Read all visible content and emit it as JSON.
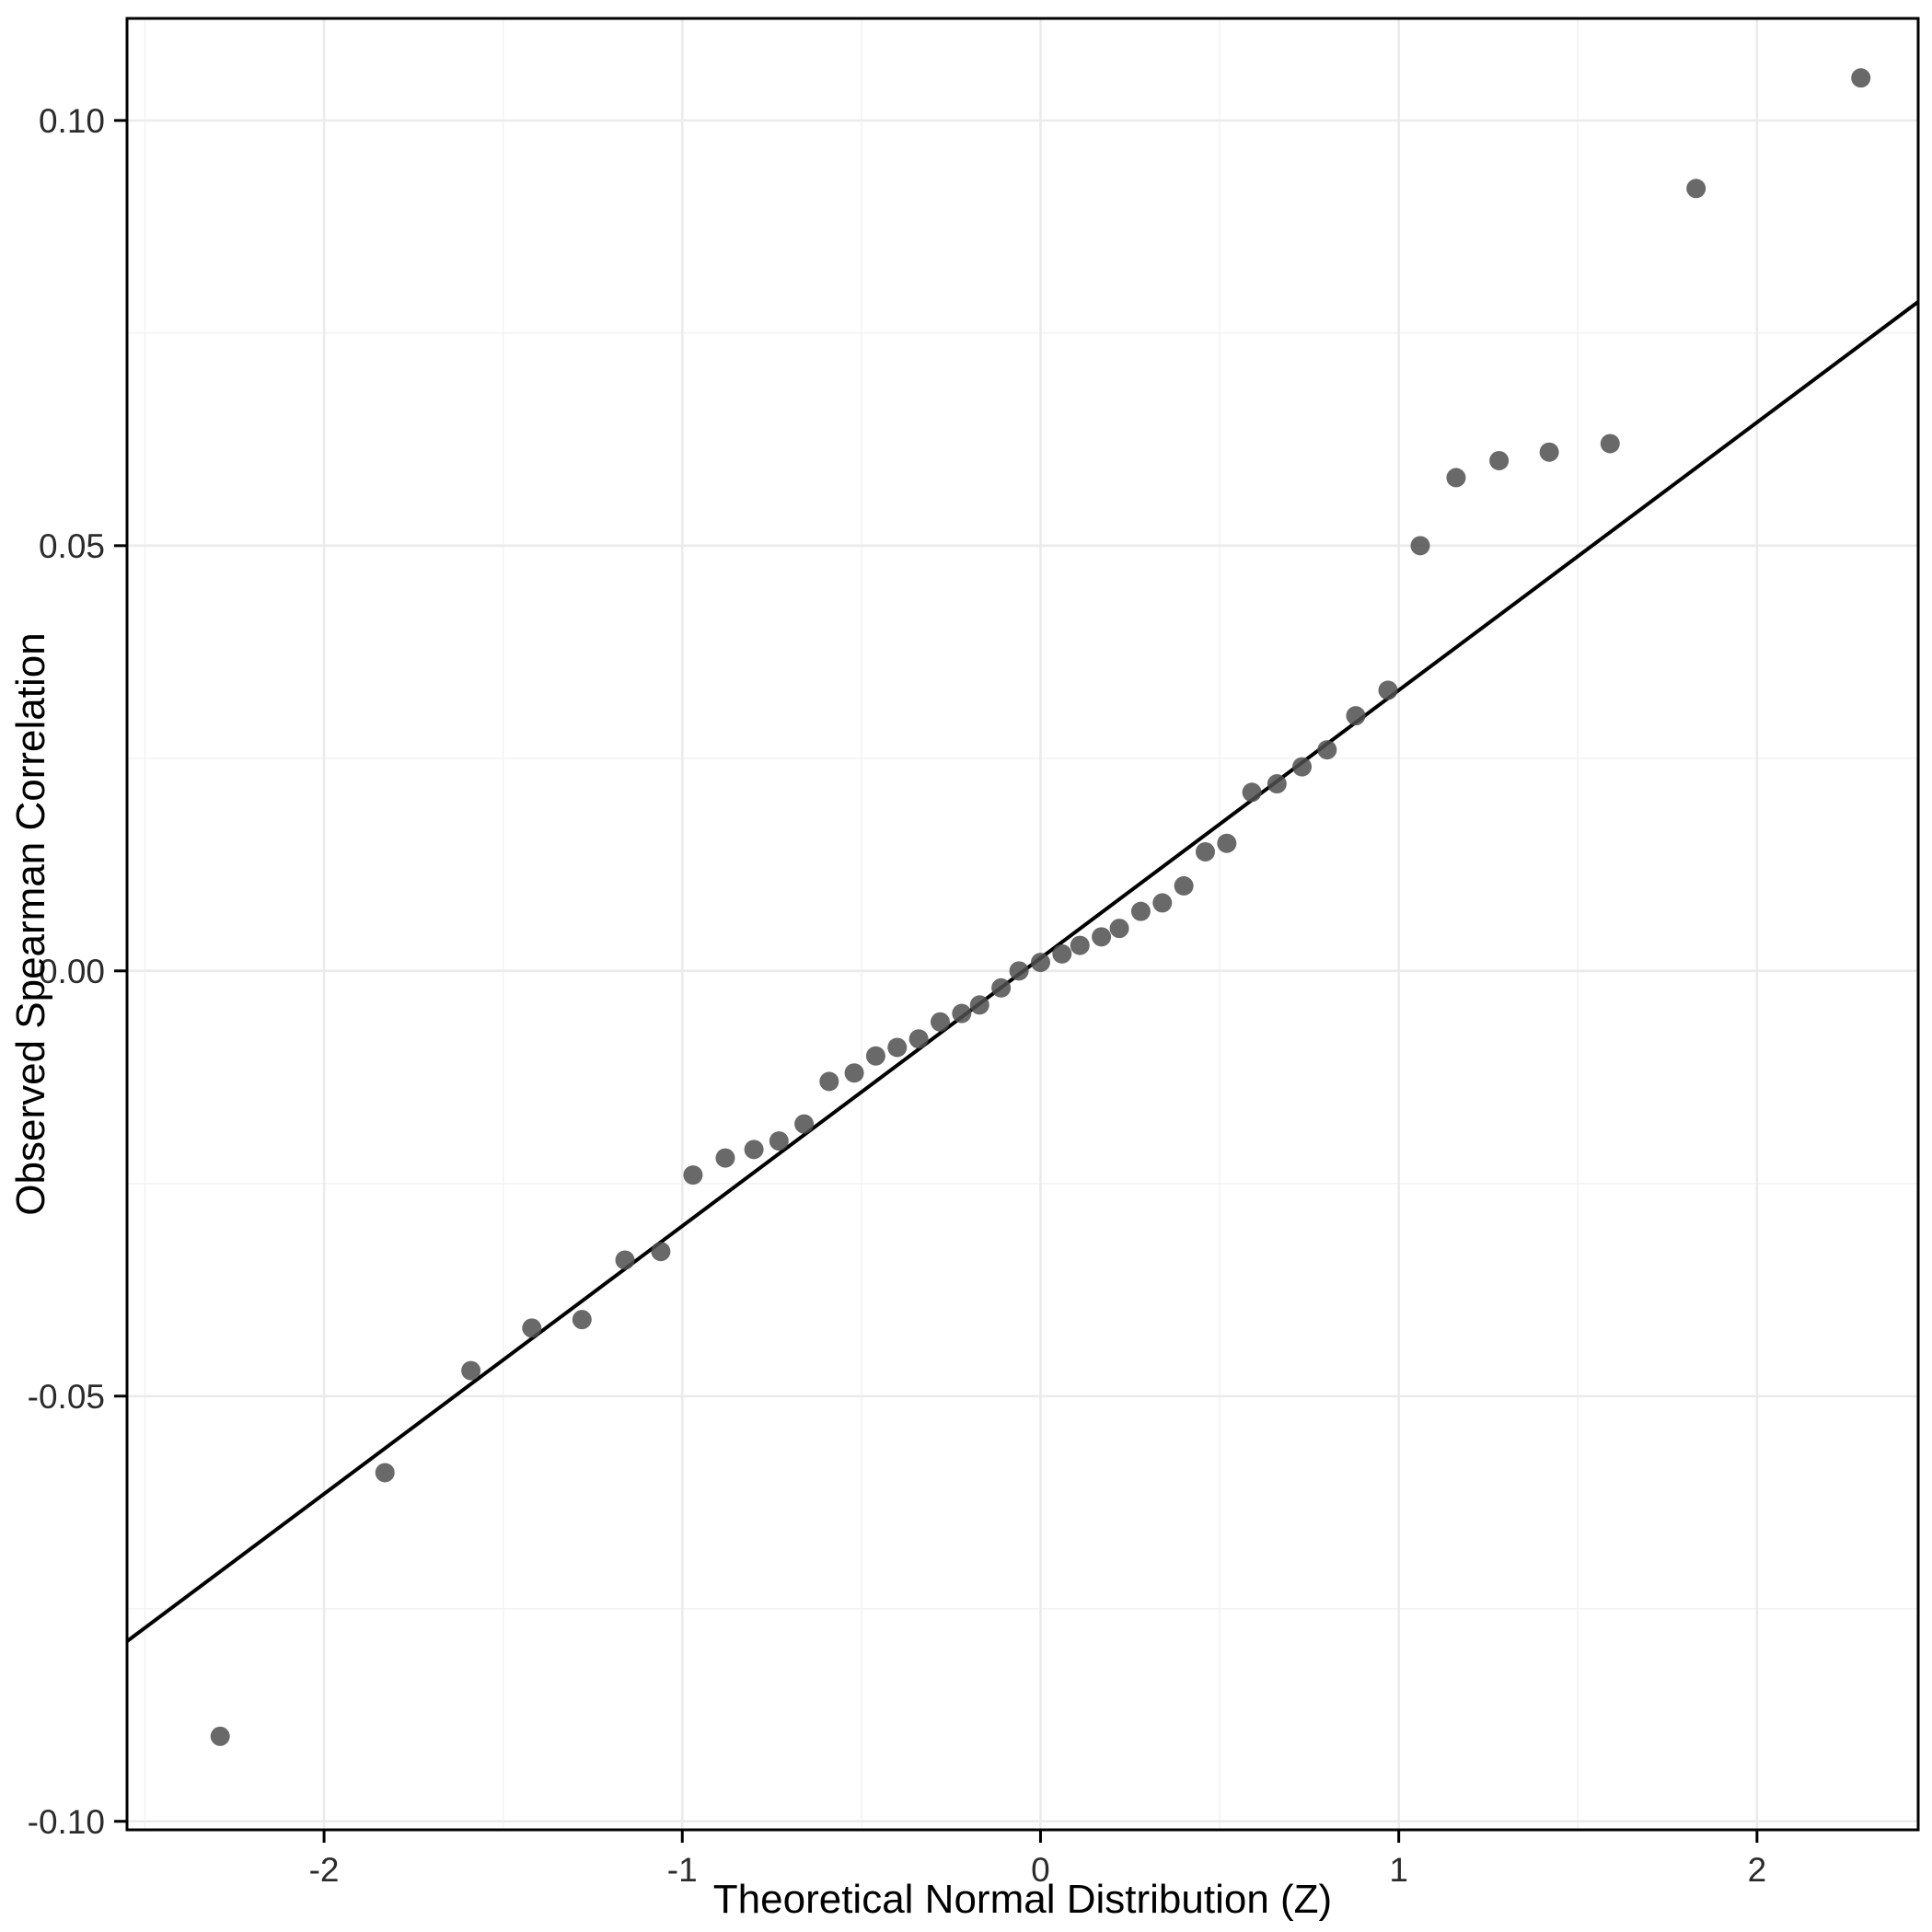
{
  "chart_data": {
    "type": "scatter",
    "title": "",
    "xlabel": "Theoretical Normal Distribution (Z)",
    "ylabel": "Observed Spearman Correlation",
    "xlim": [
      -2.55,
      2.45
    ],
    "ylim": [
      -0.101,
      0.112
    ],
    "grid": true,
    "legend": "none",
    "x_ticks": {
      "values": [
        -2,
        -1,
        0,
        1,
        2
      ],
      "labels": [
        "-2",
        "-1",
        "0",
        "1",
        "2"
      ]
    },
    "y_ticks": {
      "values": [
        -0.1,
        -0.05,
        0.0,
        0.05,
        0.1
      ],
      "labels": [
        "-0.10",
        "-0.05",
        "0.00",
        "0.05",
        "0.10"
      ]
    },
    "x_minor_ticks": [
      -2.5,
      -1.5,
      -0.5,
      0.5,
      1.5
    ],
    "y_minor_ticks": [
      -0.075,
      -0.025,
      0.025,
      0.075
    ],
    "points": {
      "x": [
        -2.29,
        -1.83,
        -1.59,
        -1.42,
        -1.28,
        -1.16,
        -1.06,
        -0.97,
        -0.88,
        -0.8,
        -0.73,
        -0.66,
        -0.59,
        -0.52,
        -0.46,
        -0.4,
        -0.34,
        -0.28,
        -0.22,
        -0.17,
        -0.11,
        -0.06,
        0.0,
        0.06,
        0.11,
        0.17,
        0.22,
        0.28,
        0.34,
        0.4,
        0.46,
        0.52,
        0.59,
        0.66,
        0.73,
        0.8,
        0.88,
        0.97,
        1.06,
        1.16,
        1.28,
        1.42,
        1.59,
        1.83,
        2.29
      ],
      "y": [
        -0.09,
        -0.059,
        -0.047,
        -0.042,
        -0.041,
        -0.034,
        -0.033,
        -0.024,
        -0.022,
        -0.021,
        -0.02,
        -0.018,
        -0.013,
        -0.012,
        -0.01,
        -0.009,
        -0.008,
        -0.006,
        -0.005,
        -0.004,
        -0.002,
        0.0,
        0.001,
        0.002,
        0.003,
        0.004,
        0.005,
        0.007,
        0.008,
        0.01,
        0.014,
        0.015,
        0.021,
        0.022,
        0.024,
        0.026,
        0.03,
        0.033,
        0.05,
        0.058,
        0.06,
        0.061,
        0.062,
        0.092,
        0.105
      ]
    },
    "reference_line": {
      "slope": 0.0315,
      "intercept": 0.0015
    },
    "style": {
      "point_color": "#4f4f4f",
      "point_opacity": 0.85,
      "line_color": "#000000",
      "grid_major_color": "#ebebeb",
      "grid_minor_color": "#f2f2f2",
      "panel_border_color": "#000000",
      "background": "#ffffff",
      "tick_color": "#000000"
    }
  }
}
